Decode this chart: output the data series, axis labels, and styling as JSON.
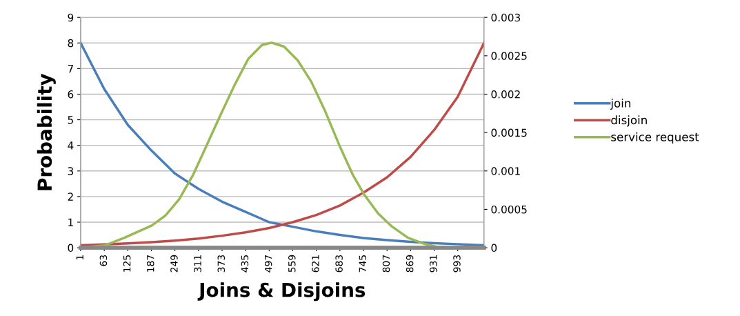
{
  "chart_data": {
    "type": "line",
    "xlabel": "Joins & Disjoins",
    "ylabel": "Probability",
    "xlim": [
      1,
      1062
    ],
    "xticks": [
      1,
      63,
      125,
      187,
      249,
      311,
      373,
      435,
      497,
      559,
      621,
      683,
      745,
      807,
      869,
      931,
      993
    ],
    "ylim": [
      0,
      9
    ],
    "yticks": [
      0,
      1,
      2,
      3,
      4,
      5,
      6,
      7,
      8,
      9
    ],
    "y2lim": [
      0,
      0.003
    ],
    "y2ticks": [
      0,
      0.0005,
      0.001,
      0.0015,
      0.002,
      0.0025,
      0.003
    ],
    "grid": "y",
    "legend": "right",
    "marker": "none",
    "line_style": "solid",
    "series": [
      {
        "name": "join",
        "color": "#4a7ebb",
        "x": [
          1,
          63,
          125,
          187,
          249,
          311,
          373,
          435,
          497,
          559,
          621,
          683,
          745,
          807,
          869,
          931,
          993,
          1062
        ],
        "values": [
          8.0,
          6.2,
          4.8,
          3.8,
          2.9,
          2.3,
          1.8,
          1.4,
          1.0,
          0.82,
          0.64,
          0.5,
          0.38,
          0.3,
          0.23,
          0.18,
          0.14,
          0.1
        ]
      },
      {
        "name": "disjoin",
        "color": "#be4b48",
        "x": [
          1,
          63,
          125,
          187,
          249,
          311,
          373,
          435,
          497,
          559,
          621,
          683,
          745,
          807,
          869,
          931,
          993,
          1062
        ],
        "values": [
          0.1,
          0.13,
          0.17,
          0.22,
          0.28,
          0.36,
          0.47,
          0.6,
          0.77,
          1.0,
          1.28,
          1.65,
          2.15,
          2.75,
          3.55,
          4.6,
          5.9,
          8.0
        ]
      },
      {
        "name": "service request",
        "color": "#98b954",
        "axis": "y2",
        "x": [
          1,
          65,
          116,
          188,
          224,
          260,
          297,
          333,
          369,
          406,
          442,
          478,
          503,
          536,
          572,
          608,
          645,
          681,
          717,
          746,
          783,
          819,
          862,
          906,
          949,
          1062
        ],
        "values": [
          0,
          3e-05,
          0.00013,
          0.00029,
          0.00042,
          0.00063,
          0.00095,
          0.00134,
          0.00173,
          0.00212,
          0.00246,
          0.00264,
          0.00267,
          0.00262,
          0.00244,
          0.00216,
          0.00177,
          0.00134,
          0.00095,
          0.0007,
          0.00045,
          0.00028,
          0.00013,
          5e-05,
          0,
          0
        ]
      }
    ]
  }
}
